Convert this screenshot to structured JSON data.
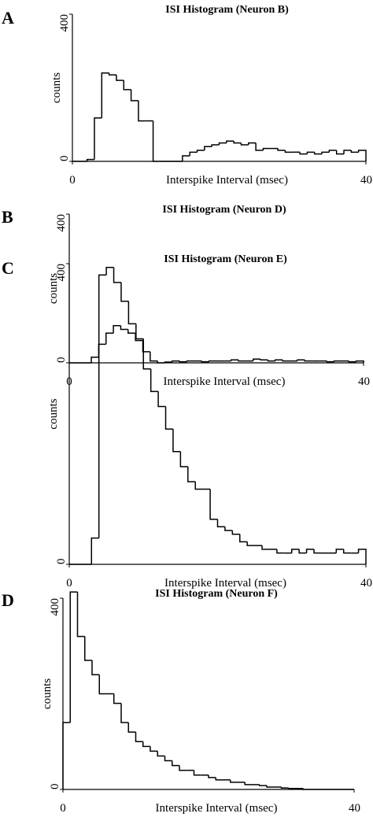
{
  "chart_data": [
    {
      "type": "histogram",
      "panel_label": "A",
      "title": "ISI Histogram  (Neuron B)",
      "x_label": "Interspike Interval (msec)",
      "y_label": "counts",
      "bins": [
        0,
        1,
        2,
        3,
        4,
        5,
        6,
        7,
        8,
        9,
        10,
        11,
        12,
        13,
        14,
        15,
        16,
        17,
        18,
        19,
        20,
        21,
        22,
        23,
        24,
        25,
        26,
        27,
        28,
        29,
        30,
        31,
        32,
        33,
        34,
        35,
        36,
        37,
        38,
        39,
        40
      ],
      "counts": [
        0,
        0,
        5,
        118,
        240,
        235,
        220,
        195,
        165,
        110,
        110,
        0,
        0,
        0,
        0,
        15,
        25,
        30,
        40,
        45,
        50,
        55,
        50,
        45,
        50,
        30,
        35,
        35,
        30,
        25,
        25,
        20,
        25,
        20,
        25,
        30,
        20,
        30,
        25,
        30
      ],
      "xlim": [
        0,
        40
      ],
      "xticks": [
        0,
        40
      ],
      "ylim": [
        0,
        400
      ],
      "yticks": [
        0,
        400
      ]
    },
    {
      "type": "histogram",
      "panel_label": "B",
      "title": "ISI Histogram  (Neuron D)",
      "x_label": "Interspike Interval (msec)",
      "y_label": "counts",
      "bins": [
        0,
        1,
        2,
        3,
        4,
        5,
        6,
        7,
        8,
        9,
        10,
        11,
        12,
        13,
        14,
        15,
        16,
        17,
        18,
        19,
        20,
        21,
        22,
        23,
        24,
        25,
        26,
        27,
        28,
        29,
        30,
        31,
        32,
        33,
        34,
        35,
        36,
        37,
        38,
        39,
        40
      ],
      "counts": [
        0,
        0,
        0,
        15,
        50,
        80,
        100,
        90,
        80,
        60,
        30,
        5,
        0,
        2,
        5,
        3,
        5,
        5,
        3,
        5,
        5,
        5,
        8,
        5,
        5,
        10,
        8,
        5,
        8,
        5,
        5,
        8,
        5,
        5,
        5,
        3,
        5,
        5,
        3,
        5
      ],
      "xlim": [
        0,
        40
      ],
      "xticks": [
        0,
        40
      ],
      "ylim": [
        0,
        400
      ],
      "yticks": [
        0,
        400
      ]
    },
    {
      "type": "histogram",
      "panel_label": "C",
      "title": "ISI Histogram  (Neuron E)",
      "x_label": "Interspike Interval (msec)",
      "y_label": "counts",
      "bins": [
        0,
        1,
        2,
        3,
        4,
        5,
        6,
        7,
        8,
        9,
        10,
        11,
        12,
        13,
        14,
        15,
        16,
        17,
        18,
        19,
        20,
        21,
        22,
        23,
        24,
        25,
        26,
        27,
        28,
        29,
        30,
        31,
        32,
        33,
        34,
        35,
        36,
        37,
        38,
        39,
        40
      ],
      "counts": [
        0,
        0,
        0,
        35,
        385,
        395,
        375,
        350,
        320,
        300,
        260,
        230,
        210,
        180,
        150,
        130,
        110,
        100,
        100,
        60,
        50,
        45,
        40,
        30,
        25,
        25,
        20,
        20,
        15,
        15,
        20,
        15,
        20,
        15,
        15,
        15,
        20,
        15,
        15,
        20
      ],
      "xlim": [
        0,
        40
      ],
      "xticks": [
        0,
        40
      ],
      "ylim": [
        0,
        400
      ],
      "yticks": [
        0,
        400
      ]
    },
    {
      "type": "histogram",
      "panel_label": "D",
      "title": "ISI Histogram  (Neuron F)",
      "x_label": "Interspike Interval (msec)",
      "y_label": "counts",
      "bins": [
        0,
        1,
        2,
        3,
        4,
        5,
        6,
        7,
        8,
        9,
        10,
        11,
        12,
        13,
        14,
        15,
        16,
        17,
        18,
        19,
        20,
        21,
        22,
        23,
        24,
        25,
        26,
        27,
        28,
        29,
        30,
        31,
        32,
        33,
        34,
        35,
        36,
        37,
        38,
        39,
        40
      ],
      "counts": [
        140,
        413,
        320,
        270,
        240,
        200,
        200,
        180,
        140,
        120,
        100,
        90,
        80,
        70,
        60,
        50,
        40,
        40,
        30,
        30,
        25,
        20,
        20,
        15,
        15,
        10,
        10,
        8,
        5,
        5,
        3,
        2,
        2,
        0,
        0,
        0,
        0,
        0,
        0,
        0
      ],
      "xlim": [
        0,
        40
      ],
      "xticks": [
        0,
        40
      ],
      "ylim": [
        0,
        400
      ],
      "yticks": [
        0,
        400
      ]
    }
  ]
}
